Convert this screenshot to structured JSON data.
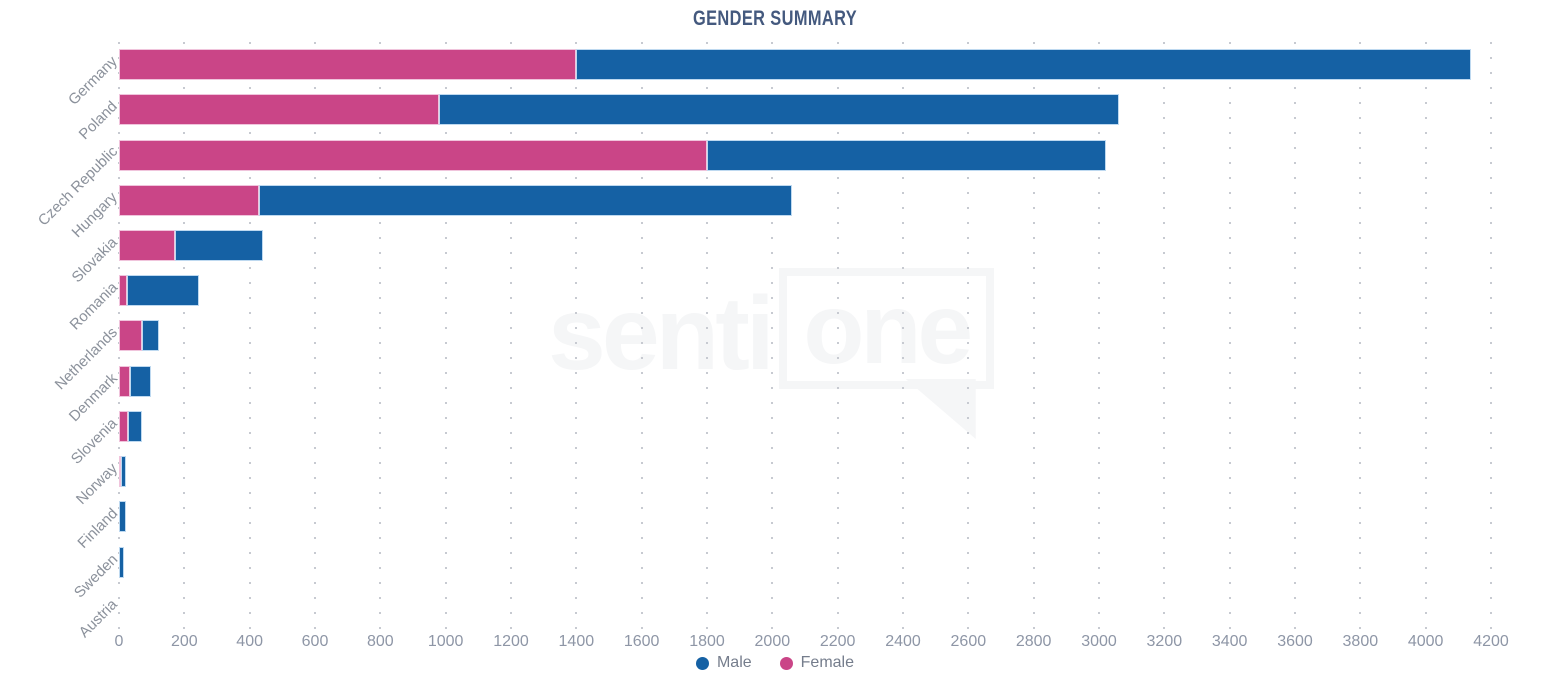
{
  "colors": {
    "male": "#1561a4",
    "female": "#ca4587",
    "male_border": "#bed9f0",
    "female_border": "#f0c4dc",
    "grid_dot": "#c7cad1",
    "title": "#44597e",
    "tick_label": "#8e96a6",
    "category_label": "#8b919b",
    "legend_label": "#757d8c",
    "watermark": "#f5f6f7"
  },
  "watermark": {
    "text_left": "senti",
    "text_boxed": "one"
  },
  "legend": {
    "items": [
      {
        "label": "Male",
        "series": "Male"
      },
      {
        "label": "Female",
        "series": "Female"
      }
    ]
  },
  "chart_data": {
    "type": "bar",
    "orientation": "horizontal",
    "stacked": true,
    "title": "GENDER SUMMARY",
    "xlabel": "",
    "ylabel": "",
    "xlim": [
      0,
      4200
    ],
    "grid": "vertical-dotted",
    "legend_position": "bottom",
    "x_ticks": [
      0,
      200,
      400,
      600,
      800,
      1000,
      1200,
      1400,
      1600,
      1800,
      2000,
      2200,
      2400,
      2600,
      2800,
      3000,
      3200,
      3400,
      3600,
      3800,
      4000,
      4200
    ],
    "categories": [
      "Germany",
      "Poland",
      "Czech Republic",
      "Hungary",
      "Slovakia",
      "Romania",
      "Netherlands",
      "Denmark",
      "Slovenia",
      "Norway",
      "Finland",
      "Sweden",
      "Austria"
    ],
    "series": [
      {
        "name": "Female",
        "color": "#ca4587",
        "border_color": "#f0c4dc",
        "values": [
          1400,
          980,
          1800,
          430,
          170,
          25,
          70,
          35,
          28,
          6,
          0,
          0,
          0
        ]
      },
      {
        "name": "Male",
        "color": "#1561a4",
        "border_color": "#bed9f0",
        "values": [
          2740,
          2080,
          1220,
          1630,
          270,
          220,
          52,
          62,
          42,
          15,
          20,
          15,
          0
        ]
      }
    ],
    "totals": [
      4140,
      3060,
      3020,
      2060,
      440,
      245,
      122,
      97,
      70,
      21,
      20,
      15,
      0
    ]
  }
}
